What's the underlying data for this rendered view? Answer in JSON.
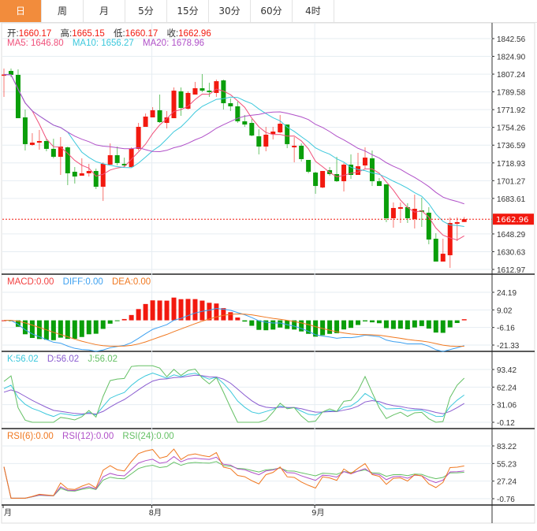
{
  "tabs": [
    "日",
    "周",
    "月",
    "5分",
    "15分",
    "30分",
    "60分",
    "4时"
  ],
  "active_tab": "日",
  "ohlc_info": {
    "open_label": "开:",
    "open": "1660.17",
    "high_label": "高:",
    "high": "1665.15",
    "low_label": "低:",
    "low": "1660.17",
    "close_label": "收:",
    "close": "1662.96"
  },
  "ma_info": {
    "ma5": "MA5: 1646.80",
    "ma10": "MA10: 1656.27",
    "ma20": "MA20: 1678.96"
  },
  "macd_info": {
    "macd": "MACD:0.00",
    "diff": "DIFF:0.00",
    "dea": "DEA:0.00"
  },
  "kdj_info": {
    "k": "K:56.02",
    "d": "D:56.02",
    "j": "J:56.02"
  },
  "rsi_info": {
    "rsi6": "RSI(6):0.00",
    "rsi12": "RSI(12):0.00",
    "rsi24": "RSI(24):0.00"
  },
  "colors": {
    "up": "#f2190f",
    "down": "#0a9e0a",
    "ma5": "#f0507a",
    "ma10": "#3cc8dc",
    "ma20": "#b050c8",
    "diff": "#3ca0f0",
    "dea": "#f07820",
    "k": "#3cc8dc",
    "d": "#8a5cd0",
    "j": "#64c064",
    "rsi6": "#f07820",
    "rsi12": "#b050c8",
    "rsi24": "#64c064",
    "tab_active": "#f28c3c"
  },
  "chart_data": {
    "type": "candlestick",
    "price_axis": {
      "labels": [
        "1842.56",
        "1824.90",
        "1807.24",
        "1789.58",
        "1771.92",
        "1754.26",
        "1736.59",
        "1718.93",
        "1701.27",
        "1683.61",
        "1648.29",
        "1630.63",
        "1612.97"
      ],
      "range": [
        1612.97,
        1842.56
      ]
    },
    "last_price": "1662.96",
    "macd_axis": {
      "labels": [
        "24.19",
        "9.02",
        "-6.16",
        "-21.33"
      ],
      "range": [
        -21.33,
        24.19
      ]
    },
    "kdj_axis": {
      "labels": [
        "93.42",
        "62.24",
        "31.06",
        "-0.12"
      ],
      "range": [
        -0.12,
        93.42
      ]
    },
    "rsi_axis": {
      "labels": [
        "83.22",
        "55.23",
        "27.24",
        "-0.76"
      ],
      "range": [
        -0.76,
        83.22
      ]
    },
    "x_labels": [
      {
        "label": "月",
        "index": 0
      },
      {
        "label": "8月",
        "index": 21
      },
      {
        "label": "9月",
        "index": 44
      }
    ],
    "ohlc": [
      [
        1806.5,
        1812.8,
        1784.6,
        1806.8
      ],
      [
        1810.4,
        1812.8,
        1804.2,
        1806.5
      ],
      [
        1806.5,
        1812.0,
        1763.4,
        1763.4
      ],
      [
        1764.2,
        1772.0,
        1731.3,
        1737.6
      ],
      [
        1736.8,
        1748.5,
        1736.0,
        1739.1
      ],
      [
        1739.1,
        1751.7,
        1732.1,
        1740.7
      ],
      [
        1740.7,
        1743.0,
        1730.5,
        1732.9
      ],
      [
        1732.9,
        1743.0,
        1723.5,
        1725.0
      ],
      [
        1725.0,
        1744.6,
        1707.0,
        1735.2
      ],
      [
        1734.4,
        1735.2,
        1696.8,
        1708.6
      ],
      [
        1710.1,
        1714.8,
        1698.4,
        1705.4
      ],
      [
        1706.2,
        1723.5,
        1706.2,
        1708.6
      ],
      [
        1708.6,
        1718.0,
        1705.4,
        1710.9
      ],
      [
        1710.9,
        1713.3,
        1692.9,
        1695.2
      ],
      [
        1695.2,
        1719.5,
        1681.1,
        1718.0
      ],
      [
        1717.2,
        1738.3,
        1717.2,
        1726.6
      ],
      [
        1726.6,
        1735.2,
        1716.4,
        1718.8
      ],
      [
        1718.0,
        1724.2,
        1714.8,
        1716.4
      ],
      [
        1714.8,
        1734.4,
        1714.8,
        1732.9
      ],
      [
        1732.9,
        1758.7,
        1731.3,
        1754.8
      ],
      [
        1754.8,
        1768.1,
        1754.8,
        1765.0
      ],
      [
        1764.2,
        1774.4,
        1764.2,
        1771.3
      ],
      [
        1771.3,
        1786.9,
        1758.7,
        1759.5
      ],
      [
        1758.7,
        1770.5,
        1753.2,
        1764.2
      ],
      [
        1763.4,
        1794.0,
        1763.4,
        1790.8
      ],
      [
        1790.1,
        1794.0,
        1765.8,
        1773.6
      ],
      [
        1772.8,
        1790.1,
        1772.0,
        1788.5
      ],
      [
        1786.9,
        1799.5,
        1786.9,
        1793.2
      ],
      [
        1793.2,
        1807.3,
        1789.3,
        1790.8
      ],
      [
        1790.8,
        1798.7,
        1784.6,
        1789.3
      ],
      [
        1788.5,
        1801.8,
        1784.6,
        1800.2
      ],
      [
        1801.0,
        1801.8,
        1772.0,
        1778.3
      ],
      [
        1778.3,
        1783.0,
        1770.5,
        1775.2
      ],
      [
        1775.2,
        1779.9,
        1758.7,
        1760.3
      ],
      [
        1760.3,
        1766.6,
        1754.8,
        1757.1
      ],
      [
        1758.7,
        1762.6,
        1745.4,
        1746.2
      ],
      [
        1745.4,
        1752.4,
        1727.4,
        1735.2
      ],
      [
        1735.2,
        1754.8,
        1730.5,
        1747.0
      ],
      [
        1747.7,
        1754.8,
        1742.3,
        1750.1
      ],
      [
        1749.3,
        1766.6,
        1748.5,
        1757.9
      ],
      [
        1757.1,
        1757.1,
        1733.6,
        1737.6
      ],
      [
        1734.4,
        1744.6,
        1719.5,
        1736.0
      ],
      [
        1736.0,
        1738.3,
        1720.3,
        1722.7
      ],
      [
        1721.9,
        1721.9,
        1708.6,
        1710.1
      ],
      [
        1709.3,
        1710.1,
        1688.2,
        1696.0
      ],
      [
        1694.5,
        1710.9,
        1693.7,
        1710.9
      ],
      [
        1711.7,
        1714.8,
        1706.2,
        1707.8
      ],
      [
        1707.8,
        1725.0,
        1699.9,
        1700.7
      ],
      [
        1700.7,
        1718.8,
        1690.5,
        1717.2
      ],
      [
        1717.2,
        1727.4,
        1703.1,
        1707.0
      ],
      [
        1707.0,
        1728.9,
        1707.0,
        1715.6
      ],
      [
        1716.4,
        1734.4,
        1713.3,
        1724.2
      ],
      [
        1723.5,
        1731.3,
        1696.0,
        1700.7
      ],
      [
        1700.7,
        1703.9,
        1696.0,
        1696.0
      ],
      [
        1697.6,
        1697.6,
        1660.0,
        1663.9
      ],
      [
        1663.9,
        1679.6,
        1654.5,
        1674.1
      ],
      [
        1673.3,
        1679.6,
        1659.2,
        1674.9
      ],
      [
        1674.9,
        1678.8,
        1659.2,
        1663.9
      ],
      [
        1663.1,
        1687.4,
        1653.7,
        1673.3
      ],
      [
        1671.7,
        1684.3,
        1655.3,
        1670.2
      ],
      [
        1669.4,
        1674.9,
        1638.0,
        1642.7
      ],
      [
        1643.5,
        1649.0,
        1620.8,
        1620.8
      ],
      [
        1620.8,
        1643.5,
        1620.8,
        1628.6
      ],
      [
        1627.1,
        1664.7,
        1614.5,
        1659.2
      ],
      [
        1658.4,
        1664.7,
        1641.2,
        1660.0
      ],
      [
        1660.17,
        1665.15,
        1660.17,
        1662.96
      ]
    ]
  }
}
